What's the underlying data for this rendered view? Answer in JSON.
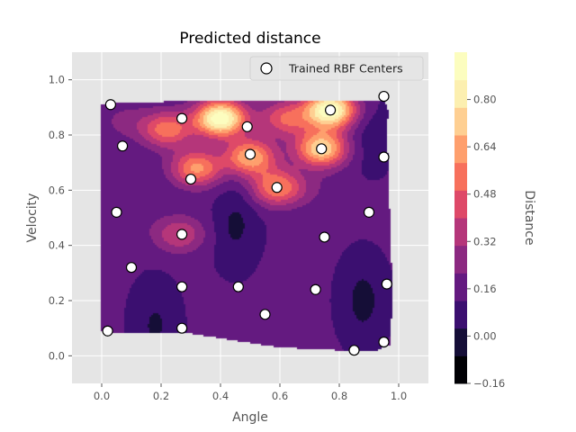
{
  "chart_data": {
    "type": "contour",
    "title": "Predicted distance",
    "xlabel": "Angle",
    "ylabel": "Velocity",
    "xlim": [
      -0.1,
      1.1
    ],
    "ylim": [
      -0.1,
      1.1
    ],
    "xticks": [
      "0.0",
      "0.2",
      "0.4",
      "0.6",
      "0.8",
      "1.0"
    ],
    "yticks": [
      "0.0",
      "0.2",
      "0.4",
      "0.6",
      "0.8",
      "1.0"
    ],
    "grid": true,
    "legend": {
      "position": "top-right",
      "entries": [
        "Trained RBF Centers"
      ]
    },
    "colorbar": {
      "label": "Distance",
      "levels": [
        -0.16,
        -0.08,
        0.0,
        0.08,
        0.16,
        0.24,
        0.32,
        0.4,
        0.48,
        0.56,
        0.64,
        0.72,
        0.8,
        0.88
      ],
      "ticks": [
        "0.80",
        "0.64",
        "0.48",
        "0.32",
        "0.16",
        "0.00",
        "−0.16"
      ],
      "colormap": "magma",
      "colors": [
        "#000004",
        "#150e37",
        "#3b0f70",
        "#641a80",
        "#8c2981",
        "#b5367a",
        "#de4968",
        "#f7705c",
        "#fe9f6d",
        "#fecf92",
        "#fcefb0",
        "#fcfdbf"
      ]
    },
    "series": [
      {
        "name": "Trained RBF Centers",
        "type": "scatter",
        "points": [
          [
            0.03,
            0.91
          ],
          [
            0.07,
            0.76
          ],
          [
            0.05,
            0.52
          ],
          [
            0.1,
            0.32
          ],
          [
            0.02,
            0.09
          ],
          [
            0.27,
            0.86
          ],
          [
            0.3,
            0.64
          ],
          [
            0.27,
            0.44
          ],
          [
            0.27,
            0.25
          ],
          [
            0.27,
            0.1
          ],
          [
            0.49,
            0.83
          ],
          [
            0.5,
            0.73
          ],
          [
            0.59,
            0.61
          ],
          [
            0.46,
            0.25
          ],
          [
            0.55,
            0.15
          ],
          [
            0.77,
            0.89
          ],
          [
            0.74,
            0.75
          ],
          [
            0.75,
            0.43
          ],
          [
            0.72,
            0.24
          ],
          [
            0.85,
            0.02
          ],
          [
            0.95,
            0.94
          ],
          [
            0.95,
            0.72
          ],
          [
            0.9,
            0.52
          ],
          [
            0.96,
            0.26
          ],
          [
            0.95,
            0.05
          ]
        ]
      }
    ],
    "hotspots": [
      {
        "x": 0.4,
        "y": 0.86,
        "value": 0.8
      },
      {
        "x": 0.77,
        "y": 0.89,
        "value": 0.8
      },
      {
        "x": 0.74,
        "y": 0.75,
        "value": 0.64
      },
      {
        "x": 0.5,
        "y": 0.72,
        "value": 0.56
      },
      {
        "x": 0.32,
        "y": 0.68,
        "value": 0.5
      },
      {
        "x": 0.59,
        "y": 0.61,
        "value": 0.48
      },
      {
        "x": 0.22,
        "y": 0.82,
        "value": 0.45
      },
      {
        "x": 0.62,
        "y": 0.86,
        "value": 0.4
      },
      {
        "x": 0.26,
        "y": 0.44,
        "value": 0.32
      },
      {
        "x": 0.08,
        "y": 0.85,
        "value": 0.18
      },
      {
        "x": 0.4,
        "y": 0.55,
        "value": 0.1
      },
      {
        "x": 0.1,
        "y": 0.5,
        "value": 0.12
      },
      {
        "x": 0.7,
        "y": 0.6,
        "value": 0.14
      },
      {
        "x": 0.85,
        "y": 0.6,
        "value": 0.1
      }
    ],
    "lowspots": [
      {
        "x": 0.45,
        "y": 0.48,
        "value": -0.02
      },
      {
        "x": 0.88,
        "y": 0.2,
        "value": -0.03
      },
      {
        "x": 0.18,
        "y": 0.11,
        "value": -0.01
      },
      {
        "x": 0.9,
        "y": 0.8,
        "value": 0.03
      }
    ]
  }
}
